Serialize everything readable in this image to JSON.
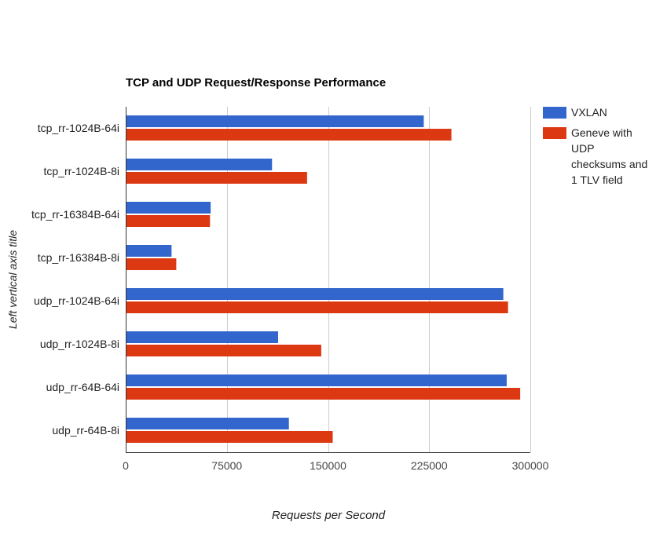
{
  "chart_data": {
    "type": "bar",
    "orientation": "horizontal",
    "title": "TCP and UDP Request/Response Performance",
    "xlabel": "Requests per Second",
    "ylabel": "Left vertical axis title",
    "xlim": [
      0,
      300000
    ],
    "xticks": [
      0,
      75000,
      150000,
      225000,
      300000
    ],
    "xtick_labels": [
      "0",
      "75000",
      "150000",
      "225000",
      "300000"
    ],
    "grid": "vertical",
    "legend_position": "right",
    "categories": [
      "tcp_rr-1024B-64i",
      "tcp_rr-1024B-8i",
      "tcp_rr-16384B-64i",
      "tcp_rr-16384B-8i",
      "udp_rr-1024B-64i",
      "udp_rr-1024B-8i",
      "udp_rr-64B-64i",
      "udp_rr-64B-8i"
    ],
    "series": [
      {
        "name": "VXLAN",
        "color": "#3366cc",
        "values": [
          221000,
          108500,
          63000,
          34000,
          280000,
          113000,
          282500,
          121000
        ]
      },
      {
        "name": "Geneve with UDP checksums and 1 TLV field",
        "color": "#dc3912",
        "values": [
          241500,
          134500,
          62500,
          37500,
          283500,
          145000,
          292500,
          153500
        ]
      }
    ]
  }
}
